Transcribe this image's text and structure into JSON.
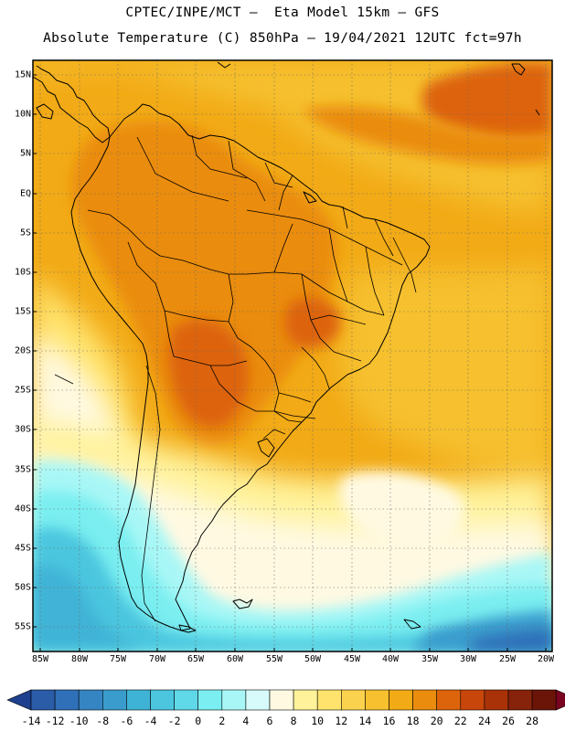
{
  "header": {
    "line1": "CPTEC/INPE/MCT –  Eta Model 15km – GFS",
    "line2": "Absolute Temperature (C) 850hPa – 19/04/2021 12UTC fct=97h"
  },
  "axes": {
    "latitudes": [
      "15N",
      "10N",
      "5N",
      "EQ",
      "5S",
      "10S",
      "15S",
      "20S",
      "25S",
      "30S",
      "35S",
      "40S",
      "45S",
      "50S",
      "55S"
    ],
    "longitudes": [
      "85W",
      "80W",
      "75W",
      "70W",
      "65W",
      "60W",
      "55W",
      "50W",
      "45W",
      "40W",
      "35W",
      "30W",
      "25W",
      "20W"
    ]
  },
  "colorbar": {
    "labels": [
      "-14",
      "-12",
      "-10",
      "-8",
      "-6",
      "-4",
      "-2",
      "0",
      "2",
      "4",
      "6",
      "8",
      "10",
      "12",
      "14",
      "16",
      "18",
      "20",
      "22",
      "24",
      "26",
      "28"
    ],
    "colors": [
      "#1f3f8f",
      "#2a5ca8",
      "#2f70b8",
      "#3585c3",
      "#3a9ccd",
      "#3fb3d6",
      "#4cc6df",
      "#5fd8e8",
      "#7aeef0",
      "#a8f7f6",
      "#d6fbfa",
      "#fff9e2",
      "#fff29a",
      "#ffe36c",
      "#fbd24e",
      "#f6c02f",
      "#f2aa16",
      "#ea8c0e",
      "#dd640a",
      "#c9460a",
      "#a93208",
      "#87230a",
      "#6b1408",
      "#7a0520"
    ]
  }
}
